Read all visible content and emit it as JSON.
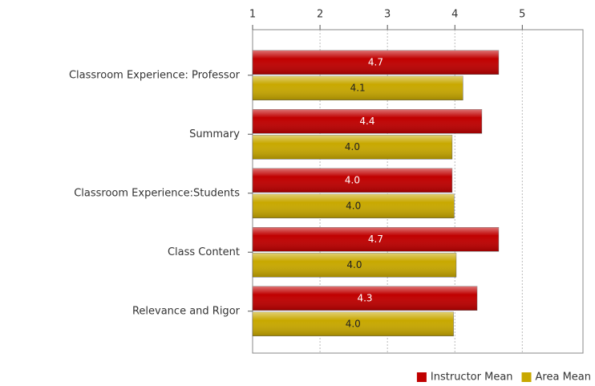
{
  "chart_data": {
    "type": "hbar",
    "categories": [
      "Classroom Experience: Professor",
      "Summary",
      "Classroom Experience:Students",
      "Class Content",
      "Relevance and Rigor"
    ],
    "series": [
      {
        "name": "Instructor Mean",
        "color": "#c00000",
        "label_color": "#ffffff",
        "values": [
          4.65,
          4.4,
          3.96,
          4.65,
          4.33
        ],
        "value_labels": [
          "4.7",
          "4.4",
          "4.0",
          "4.7",
          "4.3"
        ]
      },
      {
        "name": "Area Mean",
        "color": "#c8a800",
        "label_color": "#222222",
        "values": [
          4.12,
          3.96,
          3.99,
          4.02,
          3.98
        ],
        "value_labels": [
          "4.1",
          "4.0",
          "4.0",
          "4.0",
          "4.0"
        ]
      }
    ],
    "xlim": [
      1,
      5.9
    ],
    "xticks": [
      1,
      2,
      3,
      4,
      5
    ],
    "grid": true,
    "legend": "bottom-right"
  }
}
